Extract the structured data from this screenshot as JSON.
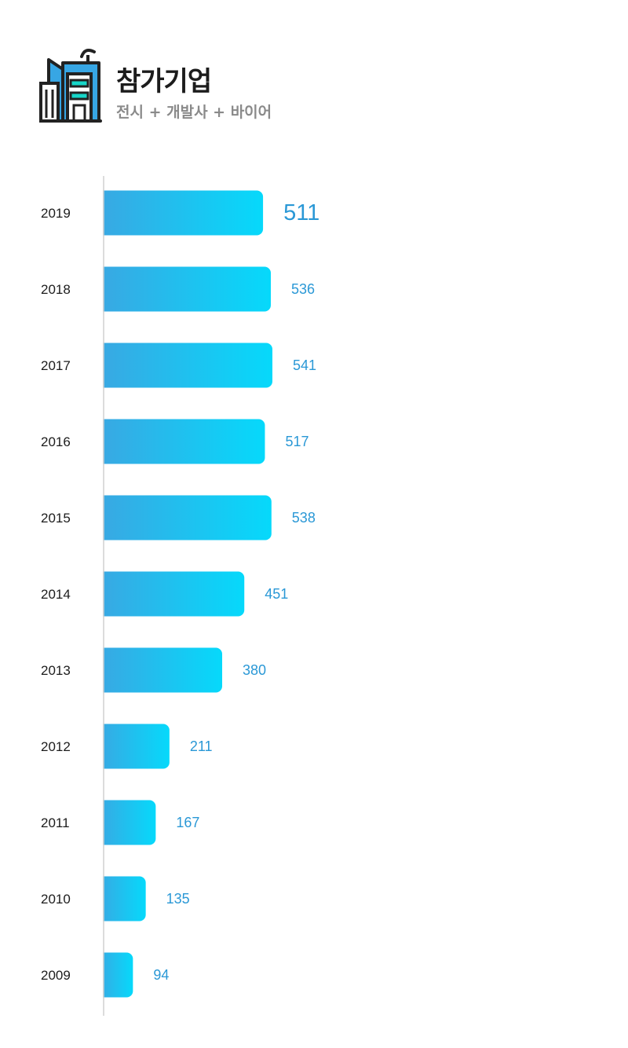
{
  "header": {
    "title": "참가기업",
    "subtitle": "전시 + 개발사 + 바이어",
    "icon": "city-buildings-icon"
  },
  "colors": {
    "bar_start": "#3aa7e2",
    "bar_end": "#06d9fb",
    "value_text": "#2a98d6",
    "axis_line": "#d0d0d0",
    "title_text": "#1c1c1c",
    "subtitle_text": "#8a8a8a"
  },
  "chart_data": {
    "type": "bar",
    "orientation": "horizontal",
    "categories": [
      "2019",
      "2018",
      "2017",
      "2016",
      "2015",
      "2014",
      "2013",
      "2012",
      "2011",
      "2010",
      "2009"
    ],
    "values": [
      511,
      536,
      541,
      517,
      538,
      451,
      380,
      211,
      167,
      135,
      94
    ],
    "labels": [
      "511",
      "536",
      "541",
      "517",
      "538",
      "451",
      "380",
      "211",
      "167",
      "135",
      "94"
    ],
    "highlight_category": "2019",
    "title": "",
    "xlabel": "",
    "ylabel": "",
    "grid": false,
    "legend": "none"
  }
}
